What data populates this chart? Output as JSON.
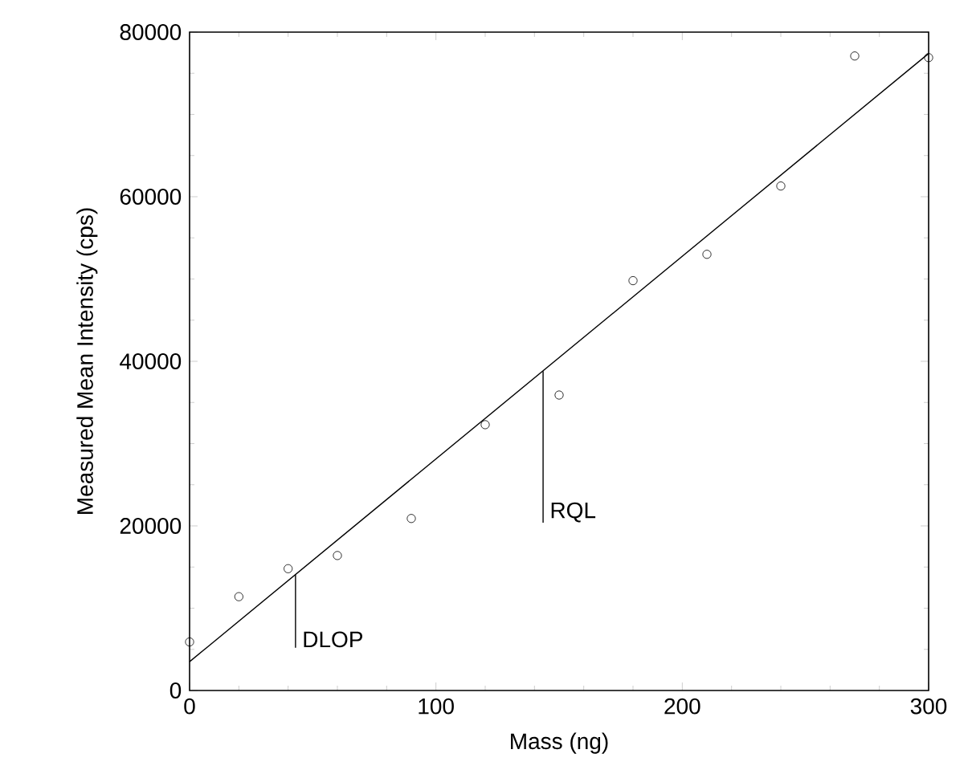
{
  "chart_data": {
    "type": "scatter",
    "xlabel": "Mass (ng)",
    "ylabel": "Measured Mean Intensity (cps)",
    "x": [
      0,
      20,
      40,
      60,
      90,
      120,
      150,
      180,
      210,
      240,
      270,
      300
    ],
    "series": [
      {
        "color": "#000000",
        "marker": "circle",
        "values": [
          5900,
          11400,
          14800,
          16400,
          20900,
          32300,
          35900,
          49800,
          53000,
          61300,
          77100,
          76900
        ]
      },
      {
        "type": "line",
        "color": "#000000",
        "marker": "none",
        "line_style": "solid",
        "x": [
          0,
          300
        ],
        "values": [
          3500,
          77400
        ]
      },
      {
        "type": "line",
        "color": "#000000",
        "marker": "none",
        "line_style": "solid",
        "x": [
          43,
          43
        ],
        "values": [
          5200,
          14100
        ]
      },
      {
        "type": "line",
        "color": "#000000",
        "marker": "none",
        "line_style": "solid",
        "x": [
          143.5,
          143.5
        ],
        "values": [
          20400,
          38800
        ]
      }
    ],
    "xlim": [
      0,
      300
    ],
    "ylim": [
      0,
      80000
    ],
    "xticks": [
      0,
      100,
      200,
      300
    ],
    "yticks": [
      0,
      20000,
      40000,
      60000,
      80000
    ],
    "annotations": [
      {
        "text": "DLOP",
        "x": 43,
        "y": 5200
      },
      {
        "text": "RQL",
        "x": 143.5,
        "y": 20400
      }
    ]
  }
}
